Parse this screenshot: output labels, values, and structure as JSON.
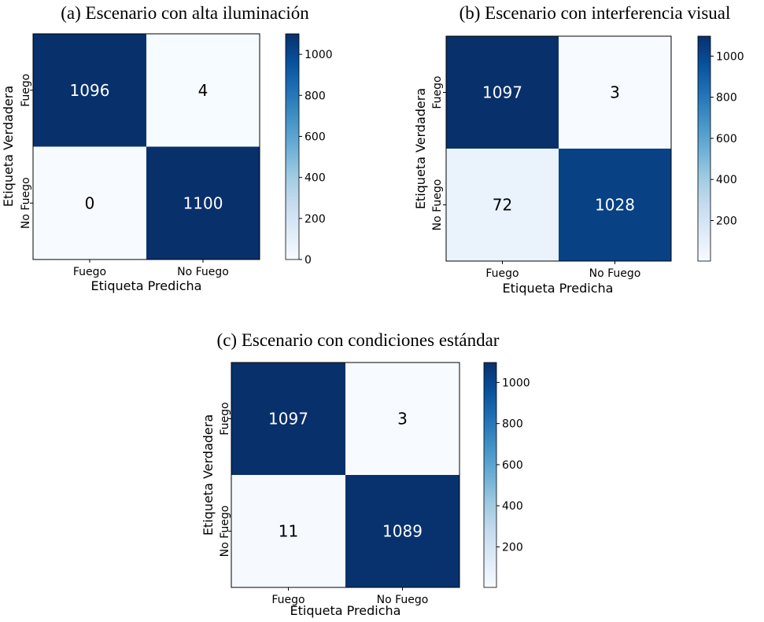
{
  "chart_data": [
    {
      "type": "heatmap",
      "title": "(a) Escenario con alta iluminación",
      "xlabel": "Etiqueta Predicha",
      "ylabel": "Etiqueta Verdadera",
      "x_categories": [
        "Fuego",
        "No Fuego"
      ],
      "y_categories": [
        "Fuego",
        "No Fuego"
      ],
      "values": [
        [
          1096,
          4
        ],
        [
          0,
          1100
        ]
      ],
      "colormap": "Blues",
      "colorbar": {
        "min": 0,
        "max": 1100,
        "ticks": [
          0,
          200,
          400,
          600,
          800,
          1000
        ],
        "tick_labels": [
          "0",
          "200",
          "400",
          "600",
          "800",
          "1000"
        ]
      }
    },
    {
      "type": "heatmap",
      "title": "(b) Escenario con interferencia visual",
      "xlabel": "Etiqueta Predicha",
      "ylabel": "Etiqueta Verdadera",
      "x_categories": [
        "Fuego",
        "No Fuego"
      ],
      "y_categories": [
        "Fuego",
        "No Fuego"
      ],
      "values": [
        [
          1097,
          3
        ],
        [
          72,
          1028
        ]
      ],
      "colormap": "Blues",
      "colorbar": {
        "min": 3,
        "max": 1097,
        "ticks": [
          200,
          400,
          600,
          800,
          1000
        ],
        "tick_labels": [
          "200",
          "400",
          "600",
          "800",
          "1000"
        ]
      }
    },
    {
      "type": "heatmap",
      "title": "(c) Escenario con condiciones estándar",
      "xlabel": "Etiqueta Predicha",
      "ylabel": "Etiqueta Verdadera",
      "x_categories": [
        "Fuego",
        "No Fuego"
      ],
      "y_categories": [
        "Fuego",
        "No Fuego"
      ],
      "values": [
        [
          1097,
          3
        ],
        [
          11,
          1089
        ]
      ],
      "colormap": "Blues",
      "colorbar": {
        "min": 3,
        "max": 1097,
        "ticks": [
          200,
          400,
          600,
          800,
          1000
        ],
        "tick_labels": [
          "200",
          "400",
          "600",
          "800",
          "1000"
        ]
      }
    }
  ]
}
